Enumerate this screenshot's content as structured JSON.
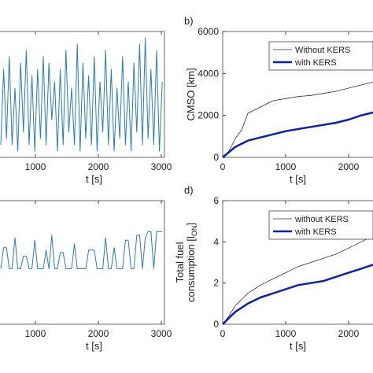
{
  "chart_data": [
    {
      "type": "line",
      "xlabel": "t [s]",
      "xlim": [
        0,
        3050
      ],
      "ylim": [
        0,
        1
      ],
      "xticks": [
        1000,
        2000,
        3000
      ],
      "x": [
        450,
        495,
        540,
        585,
        630,
        675,
        720,
        765,
        810,
        855,
        900,
        945,
        990,
        1035,
        1080,
        1125,
        1170,
        1215,
        1260,
        1305,
        1350,
        1395,
        1440,
        1485,
        1530,
        1575,
        1620,
        1665,
        1710,
        1755,
        1800,
        1845,
        1890,
        1935,
        1980,
        2025,
        2070,
        2115,
        2160,
        2205,
        2250,
        2295,
        2340,
        2385,
        2430,
        2475,
        2520,
        2565,
        2610,
        2655,
        2700,
        2745,
        2790,
        2835,
        2880,
        2925,
        2970,
        3015
      ],
      "series": [
        {
          "color": "#2b7bb5",
          "width": 1,
          "values": [
            0.1,
            0.7,
            0.15,
            0.8,
            0.1,
            0.55,
            0.05,
            0.75,
            0.2,
            0.85,
            0.1,
            0.65,
            0.05,
            0.7,
            0.15,
            0.8,
            0.1,
            0.75,
            0.3,
            0.6,
            0.05,
            0.7,
            0.1,
            0.85,
            0.2,
            0.55,
            0.1,
            0.9,
            0.05,
            0.75,
            0.15,
            0.65,
            0.1,
            0.8,
            0.05,
            0.6,
            0.2,
            0.85,
            0.1,
            0.7,
            0.05,
            0.55,
            0.15,
            0.8,
            0.1,
            0.6,
            0.05,
            0.75,
            0.2,
            0.9,
            0.1,
            0.95,
            0.15,
            0.7,
            0.1,
            0.85,
            0.05,
            0.6
          ]
        }
      ]
    },
    {
      "type": "line",
      "label": "b)",
      "xlabel": "t [s]",
      "ylabel": [
        "CMSO [km]"
      ],
      "xlim": [
        0,
        2400
      ],
      "ylim": [
        0,
        6000
      ],
      "xticks": [
        0,
        1000,
        2000
      ],
      "yticks": [
        0,
        2000,
        4000,
        6000
      ],
      "legend": "upper right",
      "x": [
        0,
        100,
        200,
        300,
        400,
        600,
        800,
        1000,
        1200,
        1400,
        1600,
        1800,
        2000,
        2200,
        2400
      ],
      "series": [
        {
          "name": "Without KERS",
          "color": "#333333",
          "width": 0.8,
          "values": [
            0,
            300,
            900,
            1300,
            2100,
            2400,
            2700,
            2800,
            2900,
            2950,
            3050,
            3150,
            3300,
            3450,
            3600
          ]
        },
        {
          "name": "with KERS",
          "color": "#0b1fb8",
          "width": 2.5,
          "values": [
            0,
            250,
            500,
            650,
            800,
            950,
            1100,
            1250,
            1350,
            1450,
            1550,
            1650,
            1800,
            2000,
            2150
          ]
        }
      ]
    },
    {
      "type": "line",
      "xlabel": "t [s]",
      "xlim": [
        0,
        3050
      ],
      "ylim": [
        0,
        1
      ],
      "xticks": [
        1000,
        2000,
        3000
      ],
      "x": [
        450,
        495,
        540,
        585,
        630,
        675,
        720,
        765,
        810,
        855,
        900,
        945,
        990,
        1035,
        1080,
        1125,
        1170,
        1215,
        1260,
        1305,
        1350,
        1395,
        1440,
        1485,
        1530,
        1575,
        1620,
        1665,
        1710,
        1755,
        1800,
        1845,
        1890,
        1935,
        1980,
        2025,
        2070,
        2115,
        2160,
        2205,
        2250,
        2295,
        2340,
        2385,
        2430,
        2475,
        2520,
        2565,
        2610,
        2655,
        2700,
        2745,
        2790,
        2835,
        2880,
        2925,
        2970,
        3015
      ],
      "series": [
        {
          "color": "#2b7bb5",
          "width": 1,
          "values": [
            0.45,
            0.62,
            0.62,
            0.45,
            0.45,
            0.7,
            0.45,
            0.45,
            0.55,
            0.55,
            0.45,
            0.45,
            0.68,
            0.45,
            0.45,
            0.45,
            0.6,
            0.45,
            0.72,
            0.45,
            0.45,
            0.58,
            0.58,
            0.45,
            0.45,
            0.45,
            0.65,
            0.45,
            0.45,
            0.45,
            0.45,
            0.6,
            0.6,
            0.6,
            0.45,
            0.45,
            0.45,
            0.7,
            0.45,
            0.45,
            0.62,
            0.45,
            0.45,
            0.45,
            0.68,
            0.68,
            0.45,
            0.45,
            0.72,
            0.72,
            0.45,
            0.7,
            0.75,
            0.75,
            0.45,
            0.75,
            0.75,
            0.75
          ]
        }
      ]
    },
    {
      "type": "line",
      "label": "d)",
      "xlabel": "t [s]",
      "ylabel": [
        "Total fuel",
        "consumption [l",
        "ON",
        "]"
      ],
      "xlim": [
        0,
        2400
      ],
      "ylim": [
        0,
        6
      ],
      "xticks": [
        0,
        1000,
        2000
      ],
      "yticks": [
        0,
        2,
        4,
        6
      ],
      "legend": "upper right",
      "x": [
        0,
        100,
        200,
        300,
        400,
        600,
        800,
        1000,
        1200,
        1400,
        1600,
        1800,
        2000,
        2200,
        2400
      ],
      "series": [
        {
          "name": "without KERS",
          "color": "#333333",
          "width": 0.8,
          "values": [
            0,
            0.4,
            0.9,
            1.2,
            1.5,
            1.9,
            2.2,
            2.5,
            2.8,
            3.0,
            3.2,
            3.4,
            3.7,
            4.0,
            4.3
          ]
        },
        {
          "name": "with KERS",
          "color": "#0b1fb8",
          "width": 2.5,
          "values": [
            0,
            0.3,
            0.6,
            0.8,
            1.0,
            1.3,
            1.5,
            1.7,
            1.9,
            2.0,
            2.1,
            2.3,
            2.5,
            2.7,
            2.9
          ]
        }
      ]
    }
  ]
}
